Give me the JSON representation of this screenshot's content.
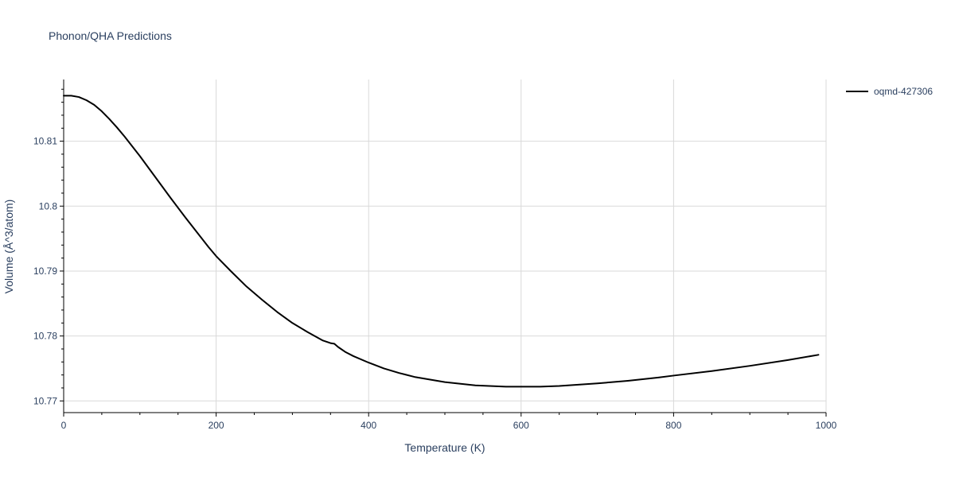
{
  "chart_data": {
    "type": "line",
    "title": "Phonon/QHA Predictions",
    "xlabel": "Temperature (K)",
    "ylabel": "Volume (Å^3/atom)",
    "xlim": [
      0,
      1000
    ],
    "ylim": [
      10.7682,
      10.8195
    ],
    "x_ticks": [
      0,
      200,
      400,
      600,
      800,
      1000
    ],
    "x_tick_labels": [
      "0",
      "200",
      "400",
      "600",
      "800",
      "1000"
    ],
    "y_ticks": [
      10.77,
      10.78,
      10.79,
      10.8,
      10.81
    ],
    "y_tick_labels": [
      "10.77",
      "10.78",
      "10.79",
      "10.8",
      "10.81"
    ],
    "grid": true,
    "legend_position": "top-right",
    "colors": {
      "series": "#000000",
      "grid": "#d9d9d9",
      "text": "#2a3f5f"
    },
    "series": [
      {
        "name": "oqmd-427306",
        "x": [
          0,
          10,
          20,
          30,
          40,
          50,
          60,
          70,
          80,
          90,
          100,
          120,
          140,
          160,
          180,
          190,
          200,
          220,
          240,
          260,
          280,
          300,
          320,
          340,
          350,
          355,
          360,
          370,
          380,
          400,
          420,
          440,
          460,
          480,
          500,
          540,
          580,
          600,
          625,
          650,
          675,
          700,
          740,
          780,
          800,
          850,
          900,
          950,
          990
        ],
        "y": [
          10.817,
          10.817,
          10.8168,
          10.8163,
          10.8156,
          10.8146,
          10.8134,
          10.8121,
          10.8107,
          10.8092,
          10.8077,
          10.8045,
          10.8013,
          10.7982,
          10.7952,
          10.7937,
          10.7923,
          10.7899,
          10.7876,
          10.7856,
          10.7837,
          10.782,
          10.7806,
          10.7793,
          10.7789,
          10.7788,
          10.7783,
          10.7775,
          10.7769,
          10.7759,
          10.775,
          10.7743,
          10.7737,
          10.7733,
          10.7729,
          10.7724,
          10.7722,
          10.7722,
          10.7722,
          10.7723,
          10.7725,
          10.7727,
          10.7731,
          10.7736,
          10.7739,
          10.7746,
          10.7754,
          10.7763,
          10.7771
        ]
      }
    ]
  }
}
